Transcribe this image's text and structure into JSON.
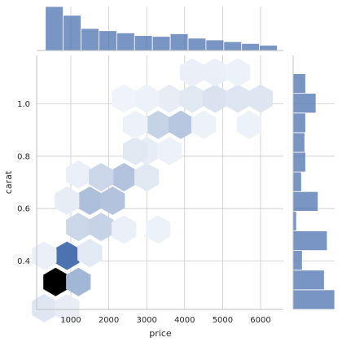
{
  "chart_data": {
    "type": "hexbin",
    "title": "",
    "xlabel": "price",
    "ylabel": "carat",
    "xlim": [
      100,
      6600
    ],
    "ylim": [
      0.215,
      1.185
    ],
    "xticks": [
      1000,
      2000,
      3000,
      4000,
      5000,
      6000
    ],
    "yticks": [
      0.4,
      0.6,
      0.8,
      1.0
    ],
    "xtick_labels": [
      "1000",
      "2000",
      "3000",
      "4000",
      "5000",
      "6000"
    ],
    "ytick_labels": [
      "0.4",
      "0.6",
      "0.8",
      "1.0"
    ],
    "grid": true,
    "colors": {
      "hex_max": "#000000",
      "hex_mid": "#4c72b0",
      "hist": "#4c72b0",
      "grid": "#cccccc",
      "axis": "#bfbfbf"
    },
    "hexbins": [
      {
        "price": 600,
        "carat": 0.32,
        "density": 1.0
      },
      {
        "price": 900,
        "carat": 0.42,
        "density": 0.7
      },
      {
        "price": 1200,
        "carat": 0.32,
        "density": 0.35
      },
      {
        "price": 300,
        "carat": 0.22,
        "density": 0.1
      },
      {
        "price": 900,
        "carat": 0.22,
        "density": 0.06
      },
      {
        "price": 300,
        "carat": 0.42,
        "density": 0.05
      },
      {
        "price": 1200,
        "carat": 0.53,
        "density": 0.18
      },
      {
        "price": 1800,
        "carat": 0.53,
        "density": 0.2
      },
      {
        "price": 1500,
        "carat": 0.43,
        "density": 0.08
      },
      {
        "price": 1500,
        "carat": 0.63,
        "density": 0.3
      },
      {
        "price": 2100,
        "carat": 0.63,
        "density": 0.28
      },
      {
        "price": 900,
        "carat": 0.63,
        "density": 0.06
      },
      {
        "price": 1200,
        "carat": 0.73,
        "density": 0.05
      },
      {
        "price": 2400,
        "carat": 0.52,
        "density": 0.05
      },
      {
        "price": 3300,
        "carat": 0.52,
        "density": 0.04
      },
      {
        "price": 2400,
        "carat": 0.72,
        "density": 0.28
      },
      {
        "price": 1800,
        "carat": 0.72,
        "density": 0.18
      },
      {
        "price": 3000,
        "carat": 0.72,
        "density": 0.09
      },
      {
        "price": 3000,
        "carat": 0.82,
        "density": 0.06
      },
      {
        "price": 2700,
        "carat": 0.82,
        "density": 0.09
      },
      {
        "price": 3300,
        "carat": 0.92,
        "density": 0.2
      },
      {
        "price": 3900,
        "carat": 0.92,
        "density": 0.26
      },
      {
        "price": 2700,
        "carat": 0.92,
        "density": 0.04
      },
      {
        "price": 3600,
        "carat": 1.02,
        "density": 0.06
      },
      {
        "price": 3000,
        "carat": 1.02,
        "density": 0.04
      },
      {
        "price": 4200,
        "carat": 1.02,
        "density": 0.09
      },
      {
        "price": 4800,
        "carat": 1.02,
        "density": 0.12
      },
      {
        "price": 4500,
        "carat": 0.92,
        "density": 0.04
      },
      {
        "price": 5400,
        "carat": 1.02,
        "density": 0.1
      },
      {
        "price": 6000,
        "carat": 1.02,
        "density": 0.1
      },
      {
        "price": 4200,
        "carat": 1.12,
        "density": 0.05
      },
      {
        "price": 4800,
        "carat": 1.12,
        "density": 0.05
      },
      {
        "price": 5400,
        "carat": 1.12,
        "density": 0.04
      },
      {
        "price": 5700,
        "carat": 0.92,
        "density": 0.04
      },
      {
        "price": 2400,
        "carat": 1.02,
        "density": 0.03
      },
      {
        "price": 3600,
        "carat": 0.82,
        "density": 0.04
      }
    ],
    "marginal_x": {
      "bin_edges": [
        330,
        800,
        1270,
        1740,
        2210,
        2680,
        3150,
        3620,
        4090,
        4560,
        5030,
        5500,
        5970,
        6440
      ],
      "counts": [
        100,
        80,
        50,
        45,
        40,
        34,
        32,
        38,
        28,
        24,
        20,
        16,
        12
      ]
    },
    "marginal_y": {
      "bin_edges": [
        0.215,
        0.29,
        0.365,
        0.44,
        0.515,
        0.59,
        0.665,
        0.74,
        0.815,
        0.89,
        0.965,
        1.04,
        1.115
      ],
      "counts": [
        100,
        75,
        22,
        82,
        8,
        60,
        20,
        30,
        28,
        30,
        55,
        30
      ]
    }
  }
}
